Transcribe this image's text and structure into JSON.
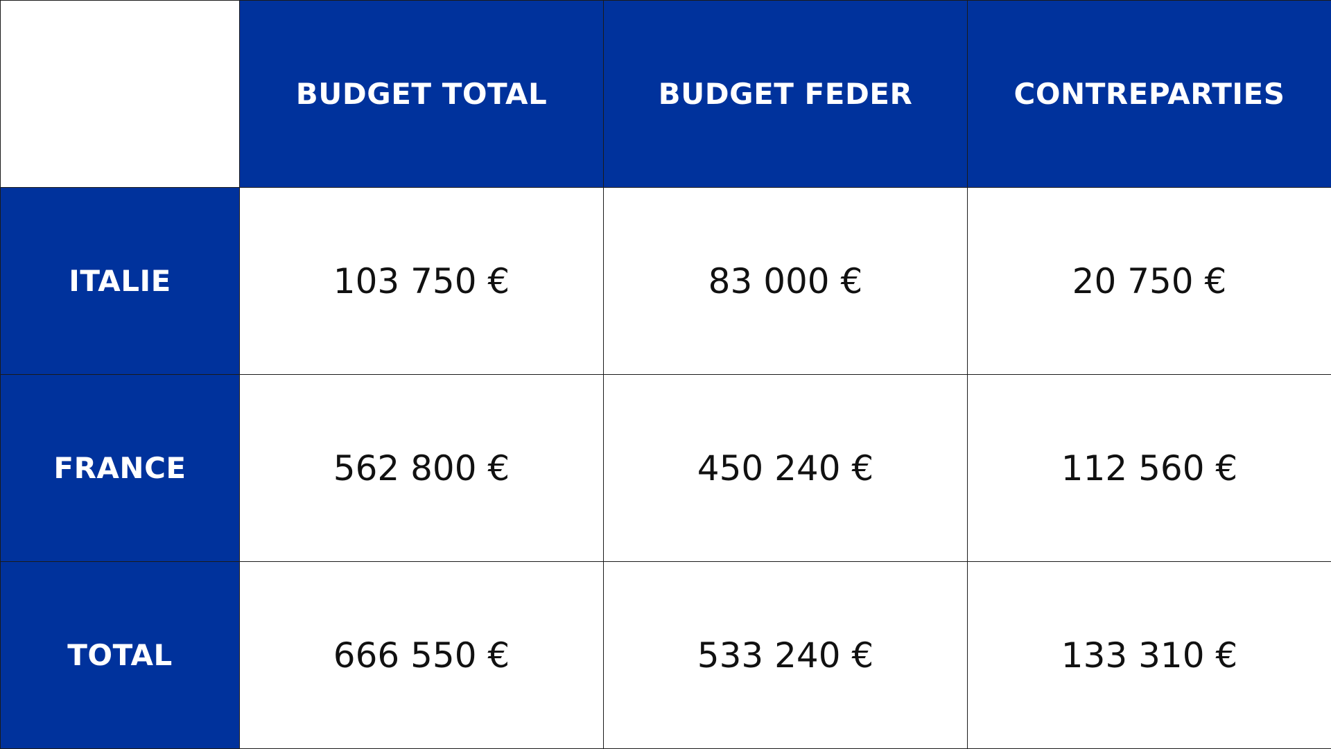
{
  "table": {
    "headers": [
      "BUDGET TOTAL",
      "BUDGET FEDER",
      "CONTREPARTIES"
    ],
    "rows": [
      {
        "label": "ITALIE",
        "values": [
          "103 750 €",
          "83 000 €",
          "20 750 €"
        ]
      },
      {
        "label": "FRANCE",
        "values": [
          "562 800 €",
          "450 240 €",
          "112 560 €"
        ]
      },
      {
        "label": "TOTAL",
        "values": [
          "666 550 €",
          "533 240 €",
          "133 310 €"
        ]
      }
    ]
  },
  "colors": {
    "header_bg": "#00329c",
    "header_text": "#ffffff",
    "cell_bg": "#ffffff",
    "cell_text": "#111111",
    "border": "#1a1a1a"
  }
}
